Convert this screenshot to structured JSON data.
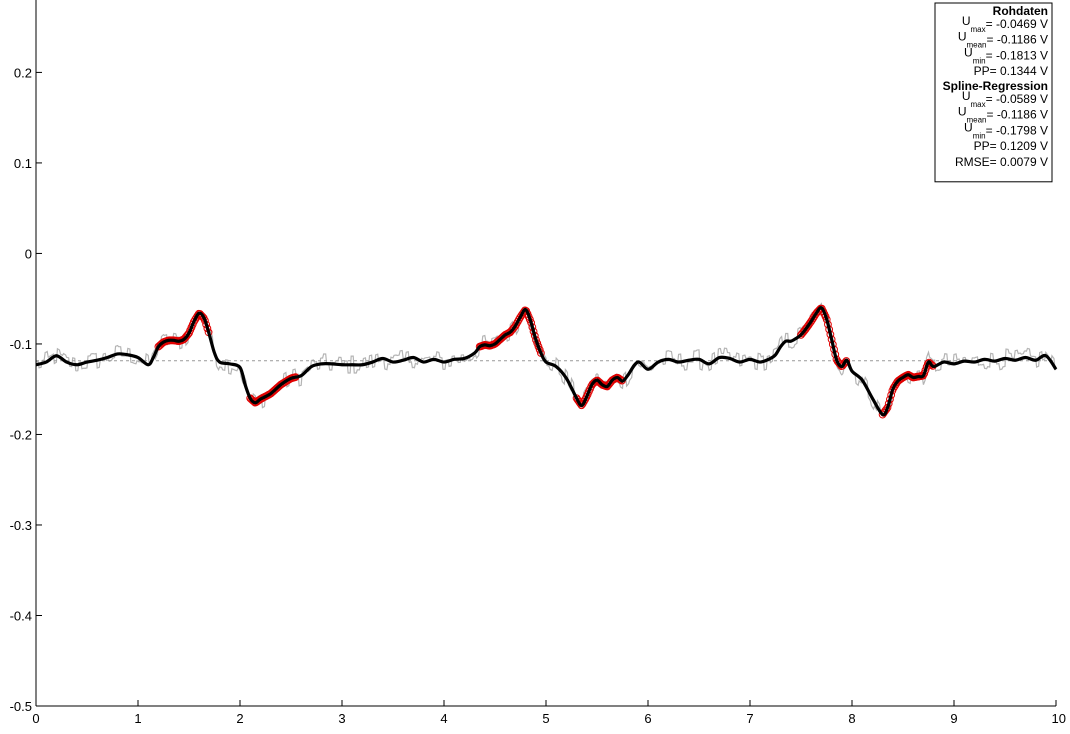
{
  "chart_data": {
    "type": "line",
    "title": "",
    "xlabel": "",
    "ylabel": "",
    "xlim": [
      0,
      10
    ],
    "ylim": [
      -0.5,
      0.28
    ],
    "grid": false,
    "x_ticks": [
      0,
      1,
      2,
      3,
      4,
      5,
      6,
      7,
      8,
      9,
      10
    ],
    "x_tick_labels": [
      "0",
      "1",
      "2",
      "3",
      "4",
      "5",
      "6",
      "7",
      "8",
      "9",
      "10"
    ],
    "y_ticks": [
      0.2,
      0.1,
      0,
      -0.1,
      -0.2,
      -0.3,
      -0.4,
      -0.5
    ],
    "y_tick_labels": [
      "0.2",
      "0.1",
      "0",
      "-0.1",
      "-0.2",
      "-0.3",
      "-0.4",
      "-0.5"
    ],
    "mean_line": -0.1186,
    "legend_placement": "top-right",
    "legend": {
      "sections": [
        {
          "title": "Rohdaten",
          "rows": [
            {
              "main": "U",
              "sub": "max",
              "value": " = -0.0469 V"
            },
            {
              "main": "U",
              "sub": "mean",
              "value": " = -0.1186 V"
            },
            {
              "main": "U",
              "sub": "min",
              "value": " = -0.1813 V"
            },
            {
              "main": "PP",
              "sub": "",
              "value": " = 0.1344 V"
            }
          ]
        },
        {
          "title": "Spline-Regression",
          "rows": [
            {
              "main": "U",
              "sub": "max",
              "value": " = -0.0589 V"
            },
            {
              "main": "U",
              "sub": "mean",
              "value": " = -0.1186 V"
            },
            {
              "main": "U",
              "sub": "min",
              "value": " = -0.1798 V"
            },
            {
              "main": "PP",
              "sub": "",
              "value": " = 0.1209 V"
            },
            {
              "main": "RMSE",
              "sub": "",
              "value": " = 0.0079 V"
            }
          ]
        }
      ]
    },
    "series": [
      {
        "kind": "spline",
        "color": "#000000",
        "x": [
          0,
          0.1,
          0.2,
          0.3,
          0.4,
          0.5,
          0.6,
          0.7,
          0.8,
          0.9,
          1.0,
          1.1,
          1.15,
          1.2,
          1.25,
          1.3,
          1.35,
          1.4,
          1.45,
          1.5,
          1.55,
          1.6,
          1.65,
          1.7,
          1.75,
          1.8,
          1.9,
          2.0,
          2.05,
          2.1,
          2.15,
          2.2,
          2.3,
          2.4,
          2.5,
          2.6,
          2.7,
          2.8,
          2.9,
          3.0,
          3.1,
          3.2,
          3.3,
          3.4,
          3.5,
          3.6,
          3.7,
          3.8,
          3.9,
          4.0,
          4.1,
          4.2,
          4.3,
          4.35,
          4.4,
          4.45,
          4.5,
          4.55,
          4.6,
          4.65,
          4.7,
          4.75,
          4.8,
          4.85,
          4.9,
          4.95,
          5.0,
          5.1,
          5.2,
          5.3,
          5.35,
          5.4,
          5.45,
          5.5,
          5.55,
          5.6,
          5.65,
          5.7,
          5.75,
          5.8,
          5.9,
          6.0,
          6.1,
          6.2,
          6.3,
          6.4,
          6.5,
          6.6,
          6.7,
          6.8,
          6.9,
          7.0,
          7.1,
          7.2,
          7.25,
          7.3,
          7.35,
          7.4,
          7.45,
          7.5,
          7.55,
          7.6,
          7.65,
          7.7,
          7.75,
          7.8,
          7.85,
          7.9,
          7.95,
          8.0,
          8.1,
          8.2,
          8.3,
          8.35,
          8.4,
          8.45,
          8.5,
          8.55,
          8.6,
          8.65,
          8.7,
          8.75,
          8.8,
          8.9,
          9.0,
          9.1,
          9.2,
          9.3,
          9.4,
          9.5,
          9.6,
          9.7,
          9.8,
          9.9,
          10.0
        ],
        "y": [
          -0.123,
          -0.12,
          -0.113,
          -0.12,
          -0.123,
          -0.12,
          -0.118,
          -0.115,
          -0.111,
          -0.112,
          -0.115,
          -0.123,
          -0.115,
          -0.103,
          -0.098,
          -0.096,
          -0.096,
          -0.097,
          -0.095,
          -0.088,
          -0.075,
          -0.066,
          -0.072,
          -0.09,
          -0.11,
          -0.12,
          -0.122,
          -0.126,
          -0.145,
          -0.16,
          -0.165,
          -0.161,
          -0.155,
          -0.145,
          -0.138,
          -0.135,
          -0.125,
          -0.122,
          -0.122,
          -0.123,
          -0.123,
          -0.123,
          -0.12,
          -0.116,
          -0.12,
          -0.118,
          -0.115,
          -0.12,
          -0.117,
          -0.12,
          -0.117,
          -0.116,
          -0.11,
          -0.103,
          -0.101,
          -0.102,
          -0.1,
          -0.095,
          -0.09,
          -0.087,
          -0.08,
          -0.07,
          -0.062,
          -0.075,
          -0.095,
          -0.11,
          -0.12,
          -0.125,
          -0.138,
          -0.16,
          -0.168,
          -0.158,
          -0.145,
          -0.14,
          -0.145,
          -0.147,
          -0.14,
          -0.137,
          -0.141,
          -0.135,
          -0.12,
          -0.128,
          -0.12,
          -0.117,
          -0.12,
          -0.118,
          -0.117,
          -0.122,
          -0.115,
          -0.116,
          -0.12,
          -0.117,
          -0.12,
          -0.116,
          -0.112,
          -0.103,
          -0.097,
          -0.097,
          -0.094,
          -0.09,
          -0.083,
          -0.075,
          -0.066,
          -0.06,
          -0.072,
          -0.095,
          -0.118,
          -0.125,
          -0.118,
          -0.13,
          -0.14,
          -0.16,
          -0.178,
          -0.17,
          -0.15,
          -0.141,
          -0.137,
          -0.134,
          -0.137,
          -0.136,
          -0.135,
          -0.12,
          -0.125,
          -0.12,
          -0.122,
          -0.119,
          -0.12,
          -0.117,
          -0.119,
          -0.116,
          -0.118,
          -0.115,
          -0.118,
          -0.113,
          -0.128
        ]
      },
      {
        "kind": "markers",
        "color": "#e00000",
        "segments": [
          [
            1.2,
            1.7
          ],
          [
            2.1,
            2.55
          ],
          [
            4.35,
            4.95
          ],
          [
            5.3,
            5.75
          ],
          [
            7.5,
            7.95
          ],
          [
            8.3,
            8.8
          ]
        ]
      },
      {
        "kind": "raw",
        "color": "#b4b4b4"
      }
    ]
  }
}
